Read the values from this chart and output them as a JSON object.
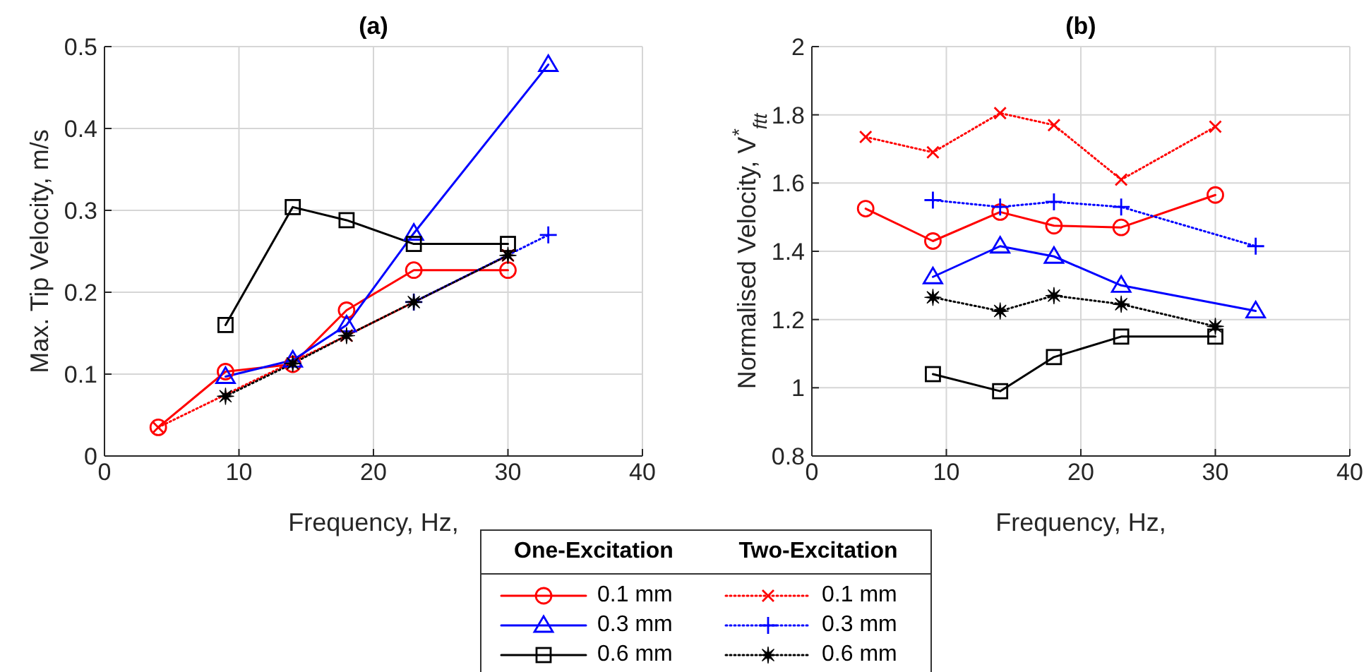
{
  "chart_data": [
    {
      "type": "line",
      "title": "(a)",
      "xlabel": "Frequency, Hz,",
      "ylabel": "Max. Tip Velocity, m/s",
      "xlim": [
        0,
        40
      ],
      "xticks": [
        0,
        10,
        20,
        30,
        40
      ],
      "ylim": [
        0,
        0.5
      ],
      "yticks": [
        0,
        0.1,
        0.2,
        0.3,
        0.4,
        0.5
      ],
      "grid": true,
      "legend": "bottom",
      "annotations": [
        "One-Excitation",
        "Two-Excitation"
      ],
      "series": [
        {
          "name": "0.1 mm",
          "color": "#ff0000",
          "marker": "circle",
          "line_style": "solid",
          "x": [
            4,
            9,
            14,
            18,
            23,
            30
          ],
          "values": [
            0.035,
            0.103,
            0.112,
            0.178,
            0.227,
            0.227
          ]
        },
        {
          "name": "0.3 mm",
          "color": "#0000ff",
          "marker": "triangle",
          "line_style": "solid",
          "x": [
            9,
            14,
            18,
            23,
            33
          ],
          "values": [
            0.097,
            0.117,
            0.16,
            0.272,
            0.478
          ]
        },
        {
          "name": "0.6 mm",
          "color": "#000000",
          "marker": "square",
          "line_style": "solid",
          "x": [
            9,
            14,
            18,
            23,
            30
          ],
          "values": [
            0.16,
            0.304,
            0.288,
            0.259,
            0.259
          ]
        },
        {
          "name": "0.1 mm",
          "color": "#ff0000",
          "marker": "cross",
          "line_style": "dotted",
          "x": [
            4,
            9,
            14,
            18,
            23,
            30
          ],
          "values": [
            0.035,
            null,
            null,
            0.147,
            null,
            0.245
          ]
        },
        {
          "name": "0.3 mm",
          "color": "#0000ff",
          "marker": "plus",
          "line_style": "dotted",
          "x": [
            23,
            33
          ],
          "values": [
            0.188,
            0.27
          ]
        },
        {
          "name": "0.6 mm",
          "color": "#000000",
          "marker": "star",
          "line_style": "dotted",
          "x": [
            9,
            14,
            18,
            23,
            30
          ],
          "values": [
            0.073,
            0.113,
            0.147,
            0.188,
            0.245
          ]
        }
      ]
    },
    {
      "type": "line",
      "title": "(b)",
      "xlabel": "Frequency, Hz,",
      "ylabel": "Normalised Velocity,  V$^{*}$$_{ftt}$",
      "xlim": [
        0,
        40
      ],
      "xticks": [
        0,
        10,
        20,
        30,
        40
      ],
      "ylim": [
        0.8,
        2
      ],
      "yticks": [
        0.8,
        1,
        1.2,
        1.4,
        1.6,
        1.8,
        2
      ],
      "grid": true,
      "series": [
        {
          "color": "#ff0000",
          "marker": "circle",
          "line_style": "solid",
          "x": [
            4,
            9,
            14,
            18,
            23,
            30
          ],
          "values": [
            1.525,
            1.43,
            1.515,
            1.475,
            1.47,
            1.565
          ]
        },
        {
          "color": "#0000ff",
          "marker": "triangle",
          "line_style": "solid",
          "x": [
            9,
            14,
            18,
            23,
            33
          ],
          "values": [
            1.325,
            1.415,
            1.385,
            1.3,
            1.225
          ]
        },
        {
          "color": "#000000",
          "marker": "square",
          "line_style": "solid",
          "x": [
            9,
            14,
            18,
            23,
            30
          ],
          "values": [
            1.04,
            0.99,
            1.09,
            1.15,
            1.15
          ]
        },
        {
          "color": "#ff0000",
          "marker": "cross",
          "line_style": "dotted",
          "x": [
            4,
            9,
            14,
            18,
            23,
            30
          ],
          "values": [
            1.735,
            1.69,
            1.805,
            1.77,
            1.61,
            1.765
          ]
        },
        {
          "color": "#0000ff",
          "marker": "plus",
          "line_style": "dotted",
          "x": [
            9,
            14,
            18,
            23,
            33
          ],
          "values": [
            1.55,
            1.53,
            1.545,
            1.53,
            1.415
          ]
        },
        {
          "color": "#000000",
          "marker": "star",
          "line_style": "dotted",
          "x": [
            9,
            14,
            18,
            23,
            30
          ],
          "values": [
            1.265,
            1.225,
            1.27,
            1.245,
            1.18
          ]
        }
      ]
    }
  ]
}
